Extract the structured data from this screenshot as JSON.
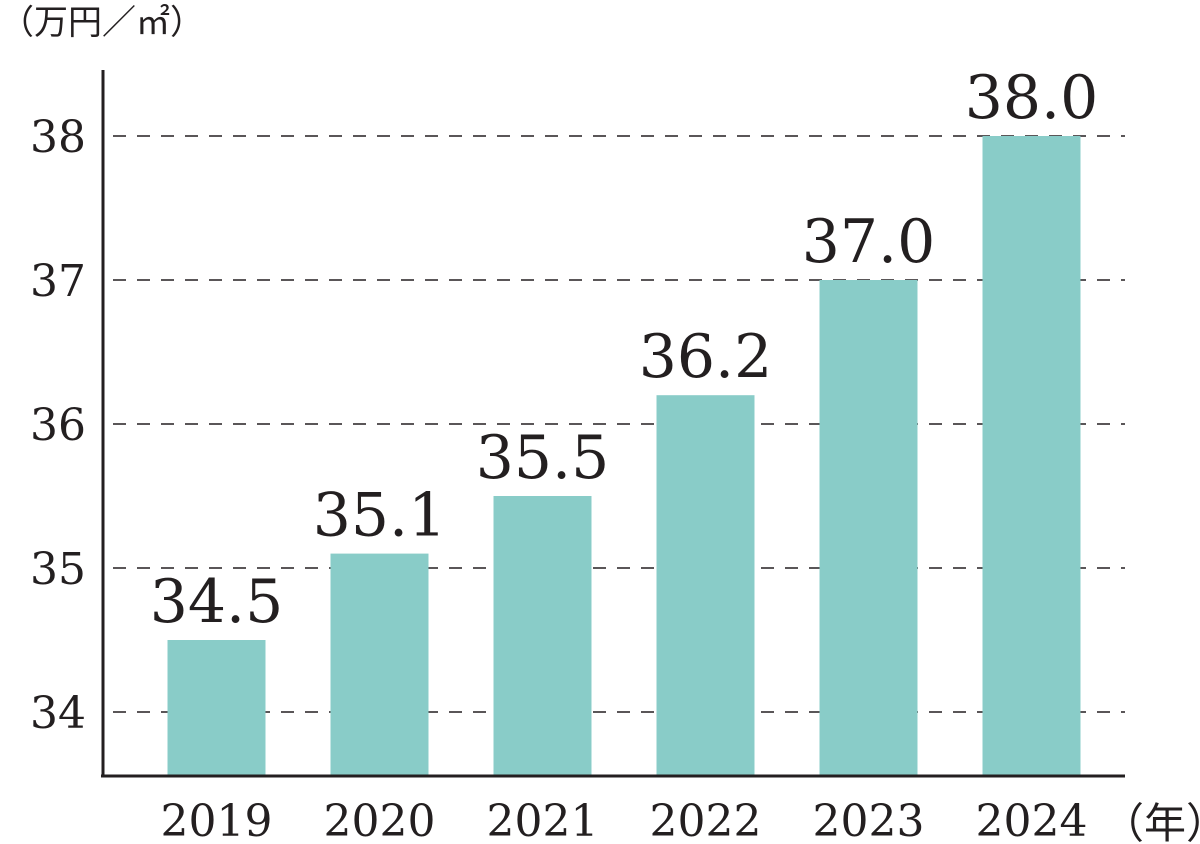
{
  "chart_data": {
    "type": "bar",
    "title": "",
    "ylabel": "（万円／㎡）",
    "xlabel": "（年）",
    "categories": [
      "2019",
      "2020",
      "2021",
      "2022",
      "2023",
      "2024"
    ],
    "values": [
      34.5,
      35.1,
      35.5,
      36.2,
      37.0,
      38.0
    ],
    "value_labels": [
      "34.5",
      "35.1",
      "35.5",
      "36.2",
      "37.0",
      "38.0"
    ],
    "yticks": [
      34,
      35,
      36,
      37,
      38
    ],
    "ylim": [
      33.56,
      38.5
    ],
    "grid": "dashed-horizontal",
    "bar_color": "#89ccc8",
    "axis_color": "#231f20"
  }
}
